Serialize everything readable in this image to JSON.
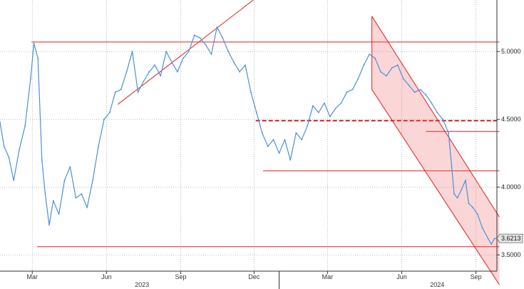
{
  "chart_data": {
    "type": "line",
    "title": "",
    "xlabel": "",
    "ylabel": "",
    "x_range": [
      "2023-01-20",
      "2024-09-27"
    ],
    "ylim": [
      3.38,
      5.38
    ],
    "y_ticks": [
      3.5,
      4.0,
      4.5,
      5.0
    ],
    "y_tick_labels": [
      "3.5000",
      "4.0000",
      "4.5000",
      "5.0000"
    ],
    "x_ticks": [
      {
        "date": "2023-03-01",
        "label": "Mar"
      },
      {
        "date": "2023-06-01",
        "label": "Jun"
      },
      {
        "date": "2023-09-01",
        "label": "Sep"
      },
      {
        "date": "2023-12-01",
        "label": "Dec"
      },
      {
        "date": "2024-03-01",
        "label": "Mar"
      },
      {
        "date": "2024-06-01",
        "label": "Jun"
      },
      {
        "date": "2024-09-01",
        "label": "Sep"
      }
    ],
    "year_labels": [
      {
        "date": "2023-07-15",
        "label": "2023"
      },
      {
        "date": "2024-07-15",
        "label": "2024"
      }
    ],
    "grid": true,
    "last_value": 3.6213,
    "last_value_label": "3.6213",
    "series": [
      {
        "color": "#4a90d9",
        "points": [
          [
            "2023-01-20",
            4.48
          ],
          [
            "2023-01-25",
            4.3
          ],
          [
            "2023-01-31",
            4.22
          ],
          [
            "2023-02-06",
            4.05
          ],
          [
            "2023-02-13",
            4.28
          ],
          [
            "2023-02-20",
            4.45
          ],
          [
            "2023-02-27",
            4.8
          ],
          [
            "2023-03-03",
            5.06
          ],
          [
            "2023-03-08",
            4.95
          ],
          [
            "2023-03-13",
            4.2
          ],
          [
            "2023-03-17",
            3.95
          ],
          [
            "2023-03-22",
            3.72
          ],
          [
            "2023-03-27",
            3.9
          ],
          [
            "2023-04-03",
            3.8
          ],
          [
            "2023-04-10",
            4.05
          ],
          [
            "2023-04-17",
            4.15
          ],
          [
            "2023-04-24",
            3.92
          ],
          [
            "2023-05-01",
            3.95
          ],
          [
            "2023-05-08",
            3.85
          ],
          [
            "2023-05-15",
            4.05
          ],
          [
            "2023-05-22",
            4.3
          ],
          [
            "2023-05-29",
            4.5
          ],
          [
            "2023-06-05",
            4.55
          ],
          [
            "2023-06-12",
            4.7
          ],
          [
            "2023-06-19",
            4.72
          ],
          [
            "2023-06-26",
            4.85
          ],
          [
            "2023-07-03",
            5.0
          ],
          [
            "2023-07-10",
            4.7
          ],
          [
            "2023-07-17",
            4.78
          ],
          [
            "2023-07-24",
            4.85
          ],
          [
            "2023-07-31",
            4.9
          ],
          [
            "2023-08-07",
            4.82
          ],
          [
            "2023-08-14",
            5.0
          ],
          [
            "2023-08-21",
            4.92
          ],
          [
            "2023-08-28",
            4.85
          ],
          [
            "2023-09-04",
            4.95
          ],
          [
            "2023-09-11",
            5.0
          ],
          [
            "2023-09-18",
            5.12
          ],
          [
            "2023-09-25",
            5.1
          ],
          [
            "2023-10-02",
            5.05
          ],
          [
            "2023-10-09",
            4.98
          ],
          [
            "2023-10-16",
            5.18
          ],
          [
            "2023-10-23",
            5.1
          ],
          [
            "2023-10-30",
            5.0
          ],
          [
            "2023-11-06",
            4.92
          ],
          [
            "2023-11-13",
            4.85
          ],
          [
            "2023-11-20",
            4.9
          ],
          [
            "2023-11-27",
            4.7
          ],
          [
            "2023-12-04",
            4.55
          ],
          [
            "2023-12-11",
            4.4
          ],
          [
            "2023-12-18",
            4.3
          ],
          [
            "2023-12-25",
            4.35
          ],
          [
            "2024-01-01",
            4.25
          ],
          [
            "2024-01-08",
            4.35
          ],
          [
            "2024-01-15",
            4.2
          ],
          [
            "2024-01-22",
            4.4
          ],
          [
            "2024-01-29",
            4.35
          ],
          [
            "2024-02-05",
            4.45
          ],
          [
            "2024-02-12",
            4.6
          ],
          [
            "2024-02-19",
            4.55
          ],
          [
            "2024-02-26",
            4.62
          ],
          [
            "2024-03-04",
            4.52
          ],
          [
            "2024-03-11",
            4.58
          ],
          [
            "2024-03-18",
            4.62
          ],
          [
            "2024-03-25",
            4.7
          ],
          [
            "2024-04-01",
            4.72
          ],
          [
            "2024-04-08",
            4.8
          ],
          [
            "2024-04-15",
            4.9
          ],
          [
            "2024-04-22",
            4.98
          ],
          [
            "2024-04-29",
            4.95
          ],
          [
            "2024-05-06",
            4.85
          ],
          [
            "2024-05-13",
            4.82
          ],
          [
            "2024-05-20",
            4.88
          ],
          [
            "2024-05-27",
            4.9
          ],
          [
            "2024-06-03",
            4.8
          ],
          [
            "2024-06-10",
            4.75
          ],
          [
            "2024-06-17",
            4.7
          ],
          [
            "2024-06-24",
            4.72
          ],
          [
            "2024-07-01",
            4.68
          ],
          [
            "2024-07-08",
            4.62
          ],
          [
            "2024-07-15",
            4.55
          ],
          [
            "2024-07-22",
            4.5
          ],
          [
            "2024-07-29",
            4.4
          ],
          [
            "2024-08-02",
            4.15
          ],
          [
            "2024-08-05",
            3.95
          ],
          [
            "2024-08-09",
            3.92
          ],
          [
            "2024-08-14",
            3.98
          ],
          [
            "2024-08-19",
            4.05
          ],
          [
            "2024-08-23",
            3.88
          ],
          [
            "2024-08-28",
            3.85
          ],
          [
            "2024-09-03",
            3.8
          ],
          [
            "2024-09-09",
            3.7
          ],
          [
            "2024-09-16",
            3.62
          ],
          [
            "2024-09-20",
            3.58
          ],
          [
            "2024-09-24",
            3.62
          ],
          [
            "2024-09-27",
            3.6213
          ]
        ]
      }
    ],
    "annotations": [
      {
        "kind": "hline",
        "y": 5.07,
        "from": "2023-02-28",
        "to": "2024-09-30",
        "color": "#e02020",
        "dash": false
      },
      {
        "kind": "hline",
        "y": 3.56,
        "from": "2023-03-07",
        "to": "2024-09-30",
        "color": "#e02020",
        "dash": false
      },
      {
        "kind": "hline",
        "y": 4.49,
        "from": "2023-12-03",
        "to": "2024-09-30",
        "color": "#e02020",
        "dash": true
      },
      {
        "kind": "hline",
        "y": 4.12,
        "from": "2023-12-12",
        "to": "2024-09-30",
        "color": "#e02020",
        "dash": false
      },
      {
        "kind": "hline",
        "y": 4.41,
        "from": "2024-07-01",
        "to": "2024-09-30",
        "color": "#e02020",
        "dash": false
      },
      {
        "kind": "segment",
        "from": [
          "2023-06-15",
          4.61
        ],
        "to": [
          "2023-11-30",
          5.38
        ],
        "color": "#e02020"
      },
      {
        "kind": "channel",
        "upper": [
          [
            "2024-04-25",
            5.26
          ],
          [
            "2024-09-30",
            3.78
          ]
        ],
        "lower": [
          [
            "2024-04-25",
            4.72
          ],
          [
            "2024-09-30",
            3.28
          ]
        ],
        "color": "#e02020",
        "fill": "rgba(240,90,90,0.25)"
      }
    ]
  }
}
